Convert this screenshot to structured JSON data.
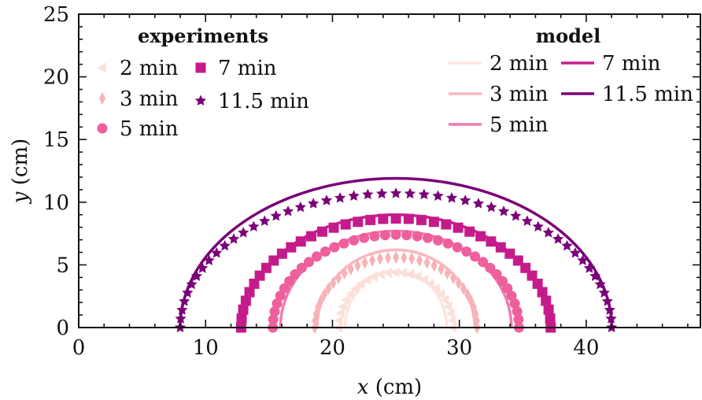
{
  "chart_data": {
    "type": "scatter",
    "xlabel": {
      "var": "x",
      "unit": " (cm)"
    },
    "ylabel": {
      "var": "y",
      "unit": " (cm)"
    },
    "xlim": [
      0,
      49
    ],
    "ylim": [
      0,
      25
    ],
    "xticks": [
      0,
      10,
      20,
      30,
      40
    ],
    "yticks": [
      0,
      5,
      10,
      15,
      20,
      25
    ],
    "grid": false,
    "experiments": {
      "legend_title": "experiments",
      "legend_placement": "top-left",
      "series": [
        {
          "name": "2 min",
          "marker": "triangle-left",
          "color": "#fbe0d8",
          "cx": 25.0,
          "a": 4.5,
          "b": 4.4,
          "n": 25
        },
        {
          "name": "3 min",
          "marker": "thin-diamond",
          "color": "#f7b3b8",
          "cx": 25.0,
          "a": 6.4,
          "b": 5.6,
          "n": 33
        },
        {
          "name": "5 min",
          "marker": "circle",
          "color": "#ee5f9b",
          "cx": 25.0,
          "a": 9.7,
          "b": 7.4,
          "n": 37
        },
        {
          "name": "7 min",
          "marker": "square",
          "color": "#c51b8a",
          "cx": 25.0,
          "a": 12.2,
          "b": 8.7,
          "n": 39
        },
        {
          "name": "11.5 min",
          "marker": "star",
          "color": "#7a0177",
          "cx": 25.0,
          "a": 17.0,
          "b": 10.7,
          "n": 49
        }
      ]
    },
    "model": {
      "legend_title": "model",
      "legend_placement": "top-right",
      "series": [
        {
          "name": "2 min",
          "color": "#fde6df",
          "cx": 25.0,
          "a": 4.0,
          "b": 4.5
        },
        {
          "name": "3 min",
          "color": "#f9b7bc",
          "cx": 25.0,
          "a": 6.2,
          "b": 6.2
        },
        {
          "name": "5 min",
          "color": "#f07ab2",
          "cx": 25.0,
          "a": 9.1,
          "b": 7.7
        },
        {
          "name": "7 min",
          "color": "#c91f8e",
          "cx": 25.0,
          "a": 12.0,
          "b": 9.0
        },
        {
          "name": "11.5 min",
          "color": "#7a0177",
          "cx": 25.0,
          "a": 17.0,
          "b": 11.9
        }
      ]
    }
  }
}
